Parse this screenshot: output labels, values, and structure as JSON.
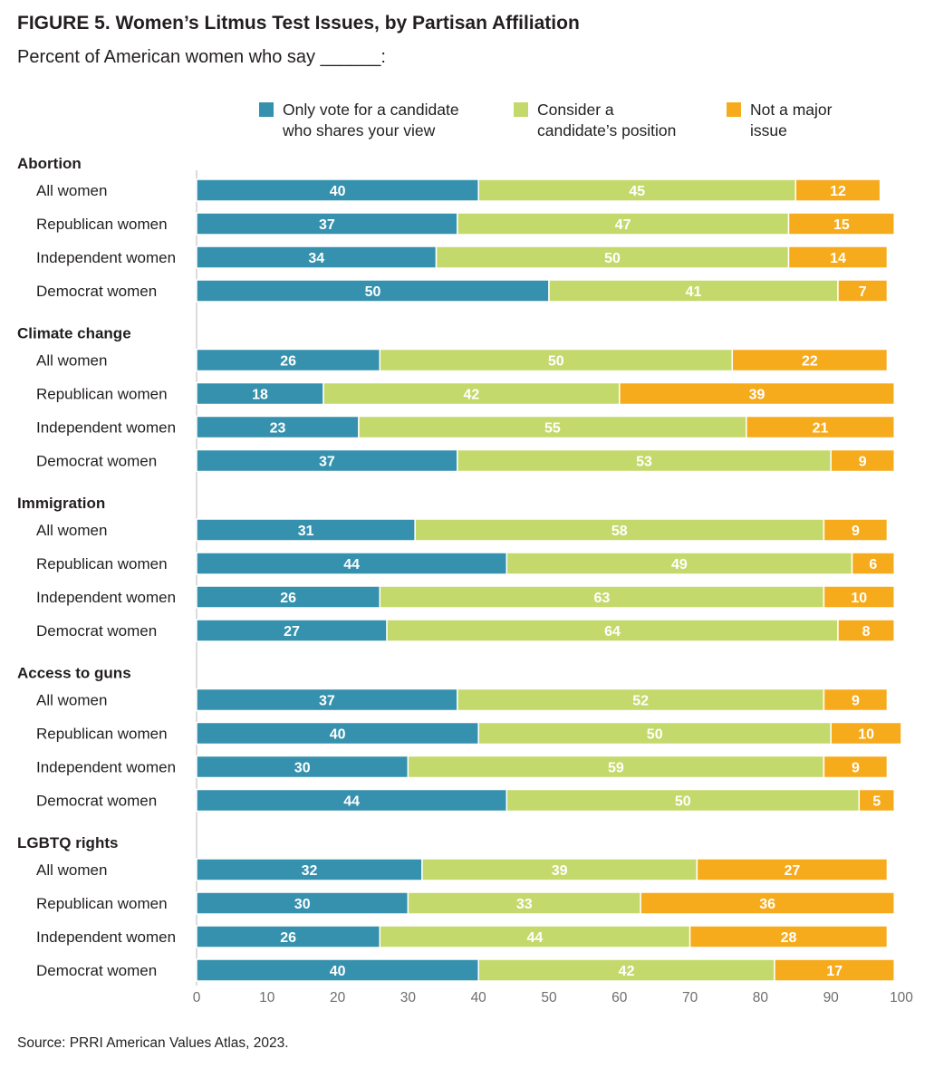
{
  "title": "FIGURE 5. Women’s Litmus Test Issues, by Partisan Affiliation",
  "subtitle": "Percent of American women who say  ______:",
  "source": "Source: PRRI American Values Atlas, 2023.",
  "legend": [
    {
      "label": "Only vote for a candidate\nwho shares your view",
      "color": "#3591ad"
    },
    {
      "label": "Consider a\ncandidate’s position",
      "color": "#c4d96b"
    },
    {
      "label": "Not a major\nissue",
      "color": "#f6ab1d"
    }
  ],
  "chart_data": {
    "type": "bar",
    "orientation": "horizontal",
    "stacked": true,
    "xlim": [
      0,
      100
    ],
    "xticks": [
      0,
      10,
      20,
      30,
      40,
      50,
      60,
      70,
      80,
      90,
      100
    ],
    "series": [
      {
        "name": "Only vote for a candidate who shares your view",
        "color": "#3591ad"
      },
      {
        "name": "Consider a candidate’s position",
        "color": "#c4d96b"
      },
      {
        "name": "Not a major issue",
        "color": "#f6ab1d"
      }
    ],
    "groups": [
      {
        "name": "Abortion",
        "rows": [
          {
            "label": "All women",
            "values": [
              40,
              45,
              12
            ]
          },
          {
            "label": "Republican women",
            "values": [
              37,
              47,
              15
            ]
          },
          {
            "label": "Independent women",
            "values": [
              34,
              50,
              14
            ]
          },
          {
            "label": "Democrat women",
            "values": [
              50,
              41,
              7
            ]
          }
        ]
      },
      {
        "name": "Climate change",
        "rows": [
          {
            "label": "All women",
            "values": [
              26,
              50,
              22
            ]
          },
          {
            "label": "Republican women",
            "values": [
              18,
              42,
              39
            ]
          },
          {
            "label": "Independent women",
            "values": [
              23,
              55,
              21
            ]
          },
          {
            "label": "Democrat women",
            "values": [
              37,
              53,
              9
            ]
          }
        ]
      },
      {
        "name": "Immigration",
        "rows": [
          {
            "label": "All women",
            "values": [
              31,
              58,
              9
            ]
          },
          {
            "label": "Republican women",
            "values": [
              44,
              49,
              6
            ]
          },
          {
            "label": "Independent women",
            "values": [
              26,
              63,
              10
            ]
          },
          {
            "label": "Democrat women",
            "values": [
              27,
              64,
              8
            ]
          }
        ]
      },
      {
        "name": "Access to guns",
        "rows": [
          {
            "label": "All women",
            "values": [
              37,
              52,
              9
            ]
          },
          {
            "label": "Republican women",
            "values": [
              40,
              50,
              10
            ]
          },
          {
            "label": "Independent women",
            "values": [
              30,
              59,
              9
            ]
          },
          {
            "label": "Democrat women",
            "values": [
              44,
              50,
              5
            ]
          }
        ]
      },
      {
        "name": "LGBTQ rights",
        "rows": [
          {
            "label": "All women",
            "values": [
              32,
              39,
              27
            ]
          },
          {
            "label": "Republican women",
            "values": [
              30,
              33,
              36
            ]
          },
          {
            "label": "Independent women",
            "values": [
              26,
              44,
              28
            ]
          },
          {
            "label": "Democrat women",
            "values": [
              40,
              42,
              17
            ]
          }
        ]
      }
    ]
  }
}
